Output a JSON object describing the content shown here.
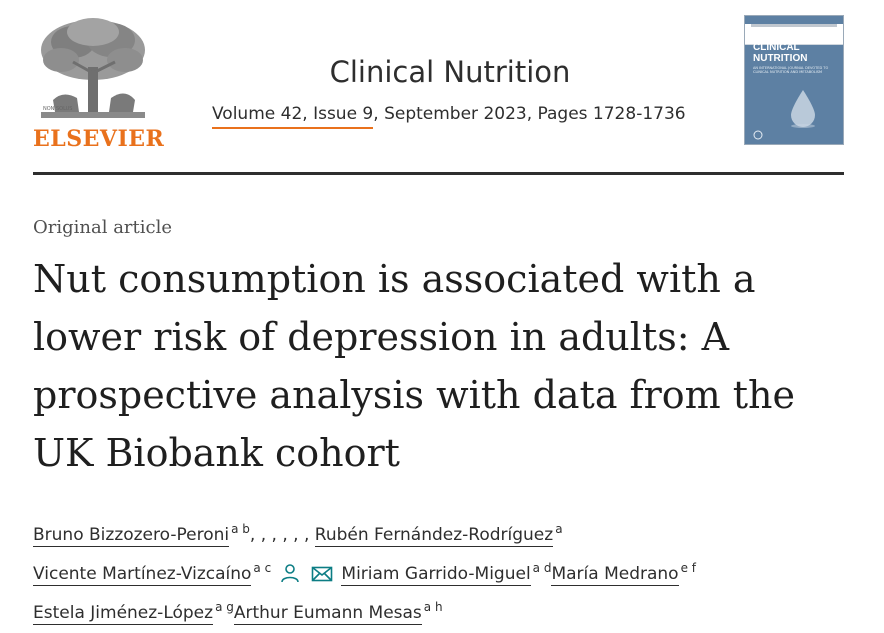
{
  "publisher": {
    "logo_text": "ELSEVIER",
    "logo_color": "#e9711c"
  },
  "journal": {
    "title": "Clinical Nutrition",
    "issue_link": "Volume 42, Issue 9",
    "issue_rest": ", September 2023, Pages 1728-1736"
  },
  "cover": {
    "title_line1": "CLINICAL",
    "title_line2": "NUTRITION",
    "subtitle": "AN INTERNATIONAL JOURNAL DEVOTED TO CLINICAL NUTRITION AND METABOLISM"
  },
  "article": {
    "type": "Original article",
    "title": "Nut consumption is associated with a lower risk of depression in adults: A prospective analysis with data from the UK Biobank cohort"
  },
  "authors": [
    {
      "name": "Bruno Bizzozero-Peroni",
      "aff": "a b",
      "extra": ", , , , , ,"
    },
    {
      "name": "Rubén Fernández-Rodríguez",
      "aff": "a"
    },
    {
      "name": "Vicente Martínez-Vizcaíno",
      "aff": "a c"
    },
    {
      "name": "Miriam Garrido-Miguel",
      "aff": "a d"
    },
    {
      "name": "María Medrano",
      "aff": "e f"
    },
    {
      "name": "Estela Jiménez-López",
      "aff": "a g"
    },
    {
      "name": "Arthur Eumann Mesas",
      "aff": "a h"
    }
  ],
  "icons": {
    "author_profile": "person-icon",
    "email": "envelope-icon",
    "icon_color": "#0c7d84"
  }
}
